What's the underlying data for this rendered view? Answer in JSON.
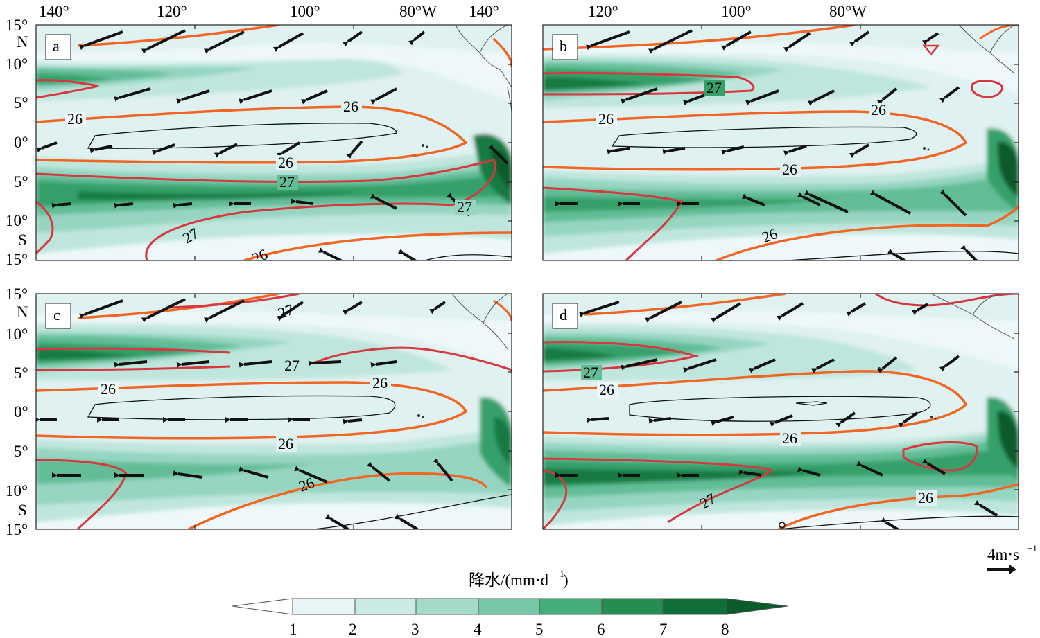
{
  "figure": {
    "colors": {
      "levels": [
        "#f1f9fb",
        "#dff1f1",
        "#bfe6dd",
        "#95d5c1",
        "#62bd97",
        "#36a06a",
        "#157a42",
        "#0a5a2c"
      ],
      "isotherm_26": "#f26522",
      "isotherm_27": "#d7373f",
      "contour_thin": "#111111",
      "vector": "#111111"
    },
    "top_x_labels": [
      "140°",
      "120°",
      "100°",
      "80°W",
      "140°"
    ],
    "top_x_labels_right": [
      "120°",
      "100°",
      "80°W"
    ],
    "y_labels": [
      "15°",
      "N",
      "10°",
      "5°",
      "0°",
      "5°",
      "10°",
      "S",
      "15°"
    ],
    "panels": [
      {
        "id": "a",
        "label": "a"
      },
      {
        "id": "b",
        "label": "b"
      },
      {
        "id": "c",
        "label": "c"
      },
      {
        "id": "d",
        "label": "d"
      }
    ],
    "reference_vector": {
      "label": "4m·s",
      "exponent": "−1"
    },
    "colorbar": {
      "title": "降水/(mm·d",
      "title_exponent": "−1",
      "title_tail": ")",
      "ticks": [
        "1",
        "2",
        "3",
        "4",
        "5",
        "6",
        "7",
        "8"
      ]
    }
  }
}
